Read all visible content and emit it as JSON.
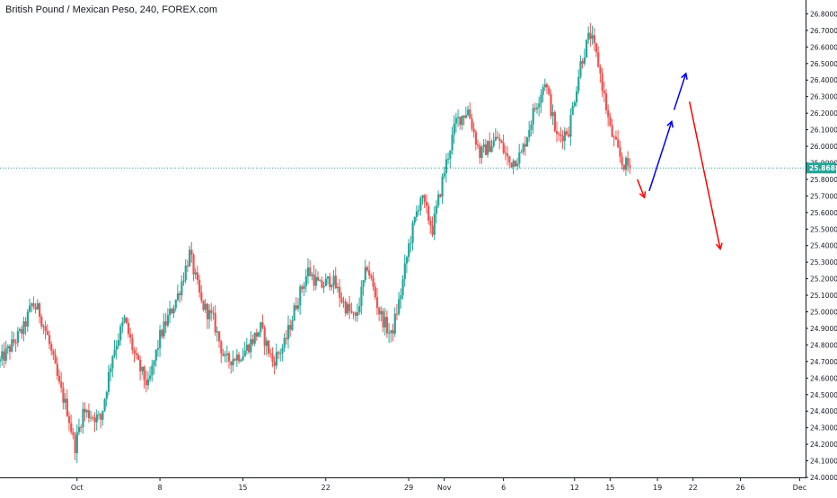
{
  "chart_data": {
    "type": "candlestick",
    "title": "British Pound / Mexican Peso, 240, FOREX.com",
    "ylim": [
      24.0,
      26.9
    ],
    "y_ticks": [
      "24.0000",
      "24.1000",
      "24.2000",
      "24.3000",
      "24.4000",
      "24.5000",
      "24.6000",
      "24.7000",
      "24.8000",
      "24.9000",
      "25.0000",
      "25.1000",
      "25.2000",
      "25.3000",
      "25.4000",
      "25.5000",
      "25.6000",
      "25.7000",
      "25.8000",
      "25.9000",
      "26.0000",
      "26.1000",
      "26.2000",
      "26.3000",
      "26.4000",
      "26.5000",
      "26.6000",
      "26.7000",
      "26.8000"
    ],
    "x_ticks": [
      {
        "label": "Oct",
        "day": 1
      },
      {
        "label": "8",
        "day": 8
      },
      {
        "label": "15",
        "day": 15
      },
      {
        "label": "22",
        "day": 22
      },
      {
        "label": "29",
        "day": 29
      },
      {
        "label": "Nov",
        "day": 32
      },
      {
        "label": "6",
        "day": 37
      },
      {
        "label": "12",
        "day": 43
      },
      {
        "label": "15",
        "day": 46
      },
      {
        "label": "19",
        "day": 50
      },
      {
        "label": "22",
        "day": 53
      },
      {
        "label": "26",
        "day": 57
      },
      {
        "label": "Dec",
        "day": 62
      }
    ],
    "x_range_days": [
      -5.5,
      62.5
    ],
    "last_price": {
      "value": 25.8688,
      "label": "25.8688"
    },
    "anchors": [
      {
        "day": -5.5,
        "price": 24.7
      },
      {
        "day": -3.5,
        "price": 24.9
      },
      {
        "day": -2.8,
        "price": 25.05
      },
      {
        "day": -2.2,
        "price": 25.0
      },
      {
        "day": -1.5,
        "price": 24.85
      },
      {
        "day": -0.5,
        "price": 24.55
      },
      {
        "day": 0.2,
        "price": 24.4
      },
      {
        "day": 0.8,
        "price": 24.18
      },
      {
        "day": 1.5,
        "price": 24.4
      },
      {
        "day": 3.0,
        "price": 24.35
      },
      {
        "day": 4.0,
        "price": 24.75
      },
      {
        "day": 5.0,
        "price": 24.95
      },
      {
        "day": 6.0,
        "price": 24.7
      },
      {
        "day": 7.0,
        "price": 24.55
      },
      {
        "day": 8.0,
        "price": 24.85
      },
      {
        "day": 9.5,
        "price": 25.1
      },
      {
        "day": 10.5,
        "price": 25.35
      },
      {
        "day": 11.5,
        "price": 25.05
      },
      {
        "day": 12.5,
        "price": 24.95
      },
      {
        "day": 13.5,
        "price": 24.7
      },
      {
        "day": 15.0,
        "price": 24.75
      },
      {
        "day": 16.5,
        "price": 24.9
      },
      {
        "day": 17.5,
        "price": 24.7
      },
      {
        "day": 18.5,
        "price": 24.8
      },
      {
        "day": 19.5,
        "price": 25.05
      },
      {
        "day": 20.5,
        "price": 25.25
      },
      {
        "day": 21.5,
        "price": 25.15
      },
      {
        "day": 22.5,
        "price": 25.2
      },
      {
        "day": 23.5,
        "price": 25.05
      },
      {
        "day": 24.5,
        "price": 24.95
      },
      {
        "day": 25.5,
        "price": 25.28
      },
      {
        "day": 26.5,
        "price": 25.0
      },
      {
        "day": 27.5,
        "price": 24.85
      },
      {
        "day": 28.3,
        "price": 25.1
      },
      {
        "day": 29.0,
        "price": 25.4
      },
      {
        "day": 30.0,
        "price": 25.7
      },
      {
        "day": 31.0,
        "price": 25.5
      },
      {
        "day": 32.0,
        "price": 25.85
      },
      {
        "day": 33.0,
        "price": 26.15
      },
      {
        "day": 34.0,
        "price": 26.22
      },
      {
        "day": 35.0,
        "price": 25.95
      },
      {
        "day": 36.5,
        "price": 26.05
      },
      {
        "day": 37.5,
        "price": 25.9
      },
      {
        "day": 38.5,
        "price": 25.95
      },
      {
        "day": 39.5,
        "price": 26.2
      },
      {
        "day": 40.5,
        "price": 26.4
      },
      {
        "day": 41.5,
        "price": 26.05
      },
      {
        "day": 42.5,
        "price": 26.1
      },
      {
        "day": 43.5,
        "price": 26.5
      },
      {
        "day": 44.3,
        "price": 26.68
      },
      {
        "day": 45.0,
        "price": 26.5
      },
      {
        "day": 46.0,
        "price": 26.1
      },
      {
        "day": 47.0,
        "price": 25.9
      },
      {
        "day": 47.8,
        "price": 25.87
      }
    ],
    "arrows": [
      {
        "color": "#ff0000",
        "from": {
          "day": 48.3,
          "price": 25.8
        },
        "to": {
          "day": 48.9,
          "price": 25.69
        }
      },
      {
        "color": "#0000ff",
        "from": {
          "day": 49.3,
          "price": 25.73
        },
        "to": {
          "day": 51.2,
          "price": 26.15
        }
      },
      {
        "color": "#0000ff",
        "from": {
          "day": 51.4,
          "price": 26.22
        },
        "to": {
          "day": 52.4,
          "price": 26.44
        }
      },
      {
        "color": "#ff0000",
        "from": {
          "day": 52.7,
          "price": 26.27
        },
        "to": {
          "day": 55.3,
          "price": 25.38
        }
      }
    ],
    "colors": {
      "up": "#26a69a",
      "down": "#ef5350",
      "price_line": "#26a69a",
      "axis_text": "#131722"
    },
    "grid": false
  }
}
